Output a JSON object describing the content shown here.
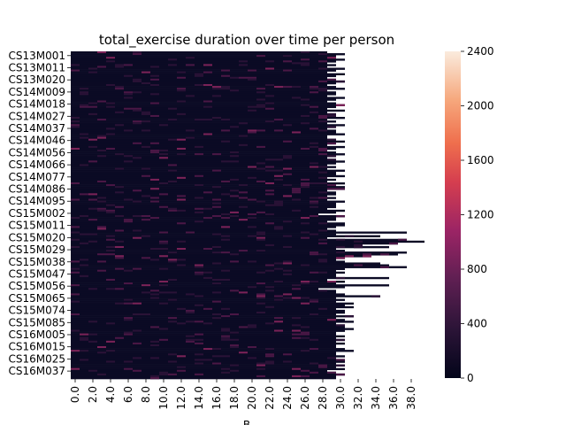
{
  "chart_data": {
    "type": "heatmap",
    "title": "total_exercise duration over time per person",
    "xlabel": "B",
    "ylabel": "",
    "x_tick_labels": [
      "0.0",
      "2.0",
      "4.0",
      "6.0",
      "8.0",
      "10.0",
      "12.0",
      "14.0",
      "16.0",
      "18.0",
      "20.0",
      "22.0",
      "24.0",
      "26.0",
      "28.0",
      "30.0",
      "32.0",
      "34.0",
      "36.0",
      "38.0"
    ],
    "y_tick_labels": [
      "CS13M001",
      "CS13M011",
      "CS13M020",
      "CS14M009",
      "CS14M018",
      "CS14M027",
      "CS14M037",
      "CS14M046",
      "CS14M056",
      "CS14M066",
      "CS14M077",
      "CS14M086",
      "CS14M095",
      "CS15M002",
      "CS15M011",
      "CS15M020",
      "CS15M029",
      "CS15M038",
      "CS15M047",
      "CS15M056",
      "CS15M065",
      "CS15M074",
      "CS15M085",
      "CS16M005",
      "CS16M015",
      "CS16M025",
      "CS16M037"
    ],
    "colorbar": {
      "ticks": [
        0,
        400,
        800,
        1200,
        1600,
        2000,
        2400
      ],
      "tick_labels": [
        "0",
        "400",
        "800",
        "1200",
        "1600",
        "2000",
        "2400"
      ],
      "vmin": 0,
      "vmax": 2400,
      "colormap": "rocket"
    },
    "n_rows": 180,
    "n_cols": 40,
    "x_range": [
      0,
      40
    ],
    "row_nonzero_extent": [
      29,
      31,
      30,
      30,
      31,
      30,
      29,
      30,
      29,
      31,
      30,
      29,
      31,
      30,
      29,
      30,
      31,
      30,
      29,
      30,
      31,
      29,
      30,
      30,
      29,
      31,
      30,
      29,
      30,
      31,
      30,
      29,
      31,
      29,
      30,
      30,
      31,
      29,
      30,
      29,
      31,
      30,
      29,
      30,
      30,
      31,
      29,
      29,
      30,
      31,
      30,
      29,
      31,
      30,
      29,
      30,
      31,
      30,
      29,
      30,
      31,
      30,
      29,
      30,
      29,
      31,
      30,
      30,
      31,
      29,
      30,
      29,
      31,
      30,
      31,
      31,
      29,
      30,
      30,
      29,
      30,
      29,
      31,
      30,
      30,
      30,
      29,
      31,
      30,
      28,
      31,
      30,
      30,
      29,
      31,
      31,
      30,
      29,
      30,
      38,
      30,
      35,
      29,
      38,
      40,
      37,
      33,
      36,
      30,
      31,
      38,
      37,
      34,
      31,
      30,
      31,
      35,
      36,
      38,
      31,
      30,
      31,
      30,
      30,
      36,
      29,
      31,
      30,
      36,
      31,
      28,
      30,
      30,
      31,
      35,
      30,
      31,
      30,
      32,
      31,
      32,
      30,
      31,
      31,
      30,
      32,
      30,
      31,
      32,
      30,
      31,
      31,
      32,
      31,
      30,
      30,
      31,
      30,
      31,
      30,
      31,
      30,
      30,
      31,
      32,
      30,
      30,
      31,
      30,
      31,
      31,
      30,
      31,
      30,
      31,
      29,
      30,
      31,
      30,
      30
    ],
    "notes_intensity": "Most cells near 0; scattered cells up to ~600"
  }
}
